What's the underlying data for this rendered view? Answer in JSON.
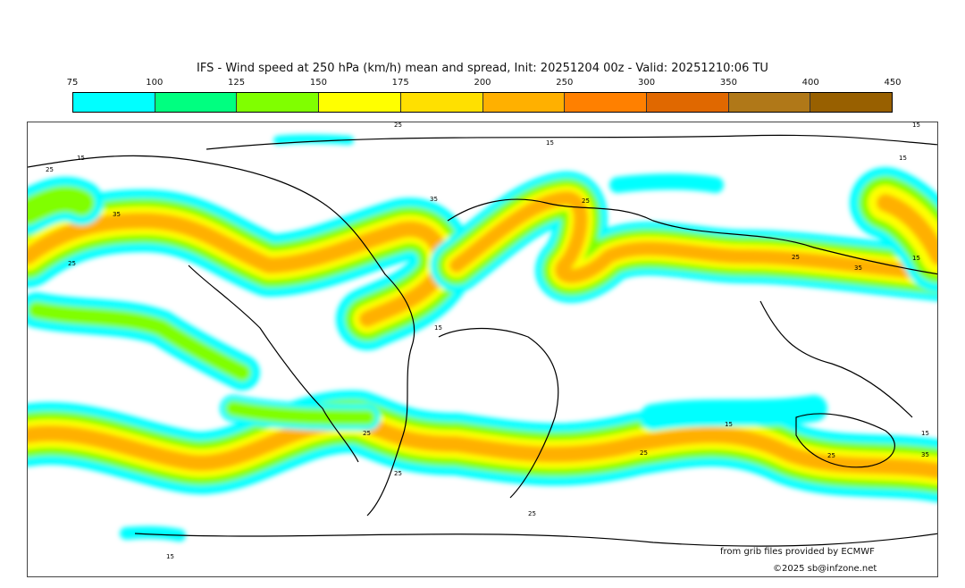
{
  "title": "IFS - Wind speed at 250 hPa (km/h) mean and spread, Init: 20251204 00z - Valid: 20251210:06 TU",
  "legend": {
    "ticks": [
      "75",
      "100",
      "125",
      "150",
      "175",
      "200",
      "250",
      "300",
      "350",
      "400",
      "450"
    ],
    "colors": [
      "#00ffff",
      "#00ff80",
      "#80ff00",
      "#ffff00",
      "#ffe000",
      "#ffb000",
      "#ff8000",
      "#e06800",
      "#b07818",
      "#986000"
    ]
  },
  "contour_labels": [
    "25",
    "15",
    "15",
    "15",
    "15",
    "25",
    "35",
    "25",
    "35",
    "25",
    "25",
    "35",
    "15",
    "15",
    "25",
    "25",
    "25",
    "35",
    "15",
    "25",
    "25",
    "15",
    "15"
  ],
  "credits": {
    "source": "from grib files provided by ECMWF",
    "copyright": "©2025 sb@infzone.net"
  }
}
